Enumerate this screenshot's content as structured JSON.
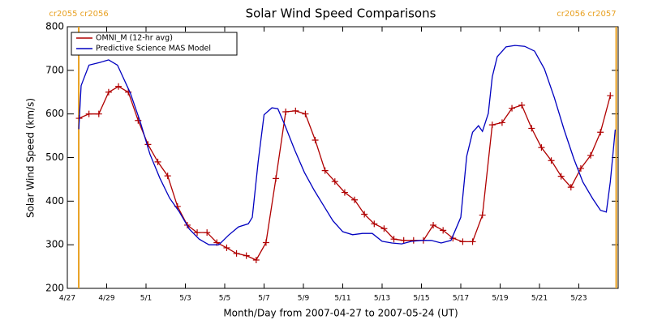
{
  "chart_data": {
    "type": "line",
    "title": "Solar Wind Speed Comparisons",
    "xlabel": "Month/Day from 2007-04-27 to 2007-05-24 (UT)",
    "ylabel": "Solar Wind Speed (km/s)",
    "xlim": [
      0,
      28
    ],
    "ylim": [
      200,
      800
    ],
    "yticks": [
      200,
      300,
      400,
      500,
      600,
      700,
      800
    ],
    "xticks": [
      {
        "value": 0,
        "label": "4/27"
      },
      {
        "value": 2,
        "label": "4/29"
      },
      {
        "value": 4,
        "label": "5/1"
      },
      {
        "value": 6,
        "label": "5/3"
      },
      {
        "value": 8,
        "label": "5/5"
      },
      {
        "value": 10,
        "label": "5/7"
      },
      {
        "value": 12,
        "label": "5/9"
      },
      {
        "value": 14,
        "label": "5/11"
      },
      {
        "value": 16,
        "label": "5/13"
      },
      {
        "value": 18,
        "label": "5/15"
      },
      {
        "value": 20,
        "label": "5/17"
      },
      {
        "value": 22,
        "label": "5/19"
      },
      {
        "value": 24,
        "label": "5/21"
      },
      {
        "value": 26,
        "label": "5/23"
      }
    ],
    "legend": "upper left",
    "markers": [
      {
        "x": 0.58,
        "label": "cr2055 cr2056",
        "color": "#e8a020"
      },
      {
        "x": 27.9,
        "label": "cr2056 cr2057",
        "color": "#e8a020"
      }
    ],
    "series": [
      {
        "name": "OMNI_M (12-hr avg)",
        "color": "#b00000",
        "marker": "+",
        "x": [
          0.6,
          1.1,
          1.6,
          2.1,
          2.6,
          3.1,
          3.6,
          4.1,
          4.6,
          5.1,
          5.6,
          6.1,
          6.6,
          7.1,
          7.6,
          8.1,
          8.6,
          9.1,
          9.6,
          10.1,
          10.6,
          11.1,
          11.6,
          12.1,
          12.6,
          13.1,
          13.6,
          14.1,
          14.6,
          15.1,
          15.6,
          16.1,
          16.6,
          17.1,
          17.6,
          18.1,
          18.6,
          19.1,
          19.6,
          20.1,
          20.6,
          21.1,
          21.6,
          22.1,
          22.6,
          23.1,
          23.6,
          24.1,
          24.6,
          25.1,
          25.6,
          26.1,
          26.6,
          27.1,
          27.6
        ],
        "values": [
          590,
          600,
          600,
          650,
          663,
          650,
          585,
          530,
          490,
          458,
          388,
          345,
          328,
          328,
          305,
          293,
          280,
          275,
          265,
          305,
          452,
          605,
          607,
          600,
          540,
          470,
          445,
          420,
          403,
          370,
          348,
          337,
          313,
          310,
          310,
          310,
          345,
          333,
          315,
          307,
          307,
          368,
          575,
          580,
          613,
          620,
          567,
          523,
          493,
          457,
          432,
          475,
          505,
          558,
          642
        ]
      },
      {
        "name": "Predictive Science MAS Model",
        "color": "#0000c0",
        "x": [
          0.58,
          0.7,
          1.1,
          1.65,
          2.1,
          2.55,
          3.2,
          3.7,
          4.2,
          4.7,
          5.2,
          5.7,
          6.2,
          6.7,
          7.2,
          7.7,
          8.2,
          8.7,
          9.2,
          9.4,
          9.7,
          10.0,
          10.4,
          10.7,
          11.05,
          11.55,
          12.05,
          12.55,
          13.05,
          13.5,
          14.0,
          14.5,
          15.0,
          15.5,
          16.0,
          16.5,
          17.0,
          17.5,
          18.0,
          18.5,
          19.0,
          19.5,
          20.0,
          20.3,
          20.6,
          20.9,
          21.1,
          21.4,
          21.6,
          21.85,
          22.3,
          22.75,
          23.25,
          23.75,
          24.25,
          24.75,
          25.25,
          25.75,
          26.2,
          26.7,
          27.1,
          27.4,
          27.6,
          27.85
        ],
        "values": [
          565,
          665,
          712,
          718,
          724,
          712,
          648,
          583,
          508,
          453,
          407,
          375,
          336,
          313,
          300,
          300,
          322,
          341,
          348,
          363,
          490,
          598,
          614,
          612,
          575,
          518,
          466,
          425,
          388,
          355,
          330,
          323,
          326,
          326,
          308,
          304,
          302,
          308,
          310,
          310,
          304,
          310,
          363,
          503,
          558,
          573,
          560,
          601,
          685,
          731,
          754,
          757,
          755,
          744,
          703,
          638,
          564,
          497,
          444,
          406,
          379,
          375,
          444,
          564
        ]
      }
    ]
  }
}
